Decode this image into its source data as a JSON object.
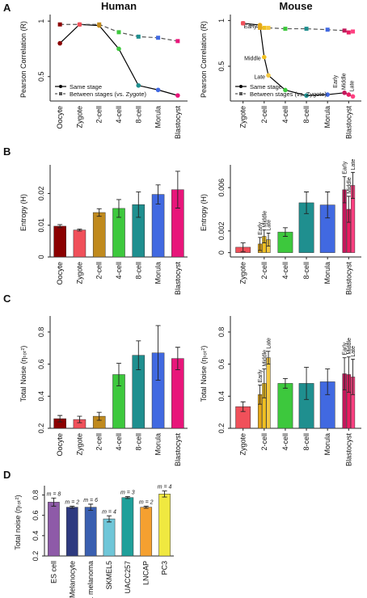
{
  "chart_data": [
    {
      "panel": "A",
      "type": "line",
      "title": "Human",
      "ylabel": "Pearson Correlation (R)",
      "categories": [
        "Oocyte",
        "Zygote",
        "2-cell",
        "4-cell",
        "8-cell",
        "Morula",
        "Blastocyst"
      ],
      "point_colors": [
        "#8b0000",
        "#f0505a",
        "#c08a1e",
        "#3dc83d",
        "#1f8f8f",
        "#4169e1",
        "#e8157a"
      ],
      "series": [
        {
          "name": "Same stage",
          "color": "#000000",
          "linestyle": "solid",
          "marker": "circle",
          "values": [
            0.8,
            0.97,
            0.96,
            0.75,
            0.42,
            0.38,
            0.33
          ]
        },
        {
          "name": "Between stages (vs. Zygote)",
          "color": "#555555",
          "linestyle": "dashed",
          "marker": "square",
          "values": [
            0.97,
            0.97,
            0.97,
            0.9,
            0.86,
            0.85,
            0.82
          ]
        }
      ],
      "ylim": [
        0.28,
        1.03
      ],
      "yticks": [
        0.5,
        1
      ],
      "legend": "lower left"
    },
    {
      "type": "line",
      "title": "Mouse",
      "ylabel": "Pearson Correlation (R)",
      "x": [
        1,
        1.8,
        2,
        2.2,
        3,
        4,
        5,
        5.8,
        6,
        6.2
      ],
      "xlim": [
        0.4,
        6.6
      ],
      "xticks": [
        {
          "value": 1,
          "label": "Zygote"
        },
        {
          "value": 2,
          "label": "2-cell"
        },
        {
          "value": 3,
          "label": "4-cell"
        },
        {
          "value": 4,
          "label": "8-cell"
        },
        {
          "value": 5,
          "label": "Morula"
        },
        {
          "value": 6,
          "label": "Blastocyst"
        }
      ],
      "point_colors": [
        "#f0505a",
        "#e6a817",
        "#f0c020",
        "#f5c842",
        "#3dc83d",
        "#1f8f8f",
        "#4169e1",
        "#c2185b",
        "#e91e63",
        "#ff4081"
      ],
      "point_labels": [
        null,
        "Early",
        "Middle",
        "Late",
        null,
        null,
        null,
        "Early",
        "Middle",
        "Late"
      ],
      "series": [
        {
          "name": "Same stage",
          "color": "#000000",
          "linestyle": "solid",
          "marker": "circle",
          "values": [
            0.97,
            0.95,
            0.6,
            0.4,
            0.24,
            0.18,
            0.19,
            0.21,
            0.19,
            0.17
          ]
        },
        {
          "name": "Between stages (vs. Zygote)",
          "color": "#555555",
          "linestyle": "dashed",
          "marker": "square",
          "values": [
            0.97,
            0.92,
            0.92,
            0.92,
            0.91,
            0.91,
            0.9,
            0.89,
            0.87,
            0.88
          ]
        }
      ],
      "ylim": [
        0.12,
        1.03
      ],
      "yticks": [
        0.5,
        1
      ],
      "legend": "lower left"
    },
    {
      "panel": "B",
      "type": "bar",
      "ylabel": "Entropy (H)",
      "categories": [
        "Oocyte",
        "Zygote",
        "2-cell",
        "4-cell",
        "8-cell",
        "Morula",
        "Blastocyst"
      ],
      "values": [
        0.0097,
        0.0085,
        0.014,
        0.0153,
        0.0165,
        0.0197,
        0.0212
      ],
      "errors": [
        0.0005,
        0.0003,
        0.0012,
        0.0028,
        0.004,
        0.003,
        0.0058
      ],
      "colors": [
        "#8b0000",
        "#f0505a",
        "#c08a1e",
        "#3dc83d",
        "#1f8f8f",
        "#4169e1",
        "#e8157a"
      ],
      "ylim": [
        0,
        0.028
      ],
      "yticks": [
        0,
        0.01,
        0.02
      ]
    },
    {
      "type": "bar",
      "ylabel": "Entropy (H)",
      "x": [
        1,
        1.8,
        2,
        2.2,
        3,
        4,
        5,
        5.8,
        6,
        6.2
      ],
      "xlim": [
        0.4,
        6.6
      ],
      "xticks": [
        {
          "value": 1,
          "label": "Zygote"
        },
        {
          "value": 2,
          "label": "2-cell"
        },
        {
          "value": 3,
          "label": "4-cell"
        },
        {
          "value": 4,
          "label": "8-cell"
        },
        {
          "value": 5,
          "label": "Morula"
        },
        {
          "value": 6,
          "label": "Blastocyst"
        }
      ],
      "values": [
        0.0005,
        0.0008,
        0.0015,
        0.0012,
        0.0019,
        0.0046,
        0.0044,
        0.0058,
        0.004,
        0.0062
      ],
      "errors": [
        0.0004,
        0.0006,
        0.0006,
        0.0006,
        0.0004,
        0.001,
        0.0012,
        0.0012,
        0.0012,
        0.0012
      ],
      "colors": [
        "#f0505a",
        "#e6a817",
        "#f0c020",
        "#f5c842",
        "#3dc83d",
        "#1f8f8f",
        "#4169e1",
        "#c2185b",
        "#e91e63",
        "#ff4081"
      ],
      "bar_labels": [
        null,
        "Early",
        "Middle",
        "Late",
        null,
        null,
        null,
        "Early",
        "Middle",
        "Late"
      ],
      "ylim": [
        -0.0004,
        0.0078
      ],
      "yticks": [
        0,
        0.002,
        0.006
      ]
    },
    {
      "panel": "C",
      "type": "bar",
      "ylabel": "Total Noise (ηₜₒₜ²)",
      "categories": [
        "Oocyte",
        "Zygote",
        "2-cell",
        "4-cell",
        "8-cell",
        "Morula",
        "Blastocyst"
      ],
      "values": [
        0.26,
        0.255,
        0.275,
        0.535,
        0.655,
        0.67,
        0.635
      ],
      "errors": [
        0.02,
        0.02,
        0.025,
        0.07,
        0.09,
        0.17,
        0.07
      ],
      "colors": [
        "#8b0000",
        "#f0505a",
        "#c08a1e",
        "#3dc83d",
        "#1f8f8f",
        "#4169e1",
        "#e8157a"
      ],
      "ylim": [
        0.2,
        0.88
      ],
      "yticks": [
        0.2,
        0.4,
        0.6,
        0.8
      ]
    },
    {
      "type": "bar",
      "ylabel": "Total Noise (ηₜₒₜ²)",
      "x": [
        1,
        1.8,
        2,
        2.2,
        3,
        4,
        5,
        5.8,
        6,
        6.2
      ],
      "xlim": [
        0.4,
        6.6
      ],
      "xticks": [
        {
          "value": 1,
          "label": "Zygote"
        },
        {
          "value": 2,
          "label": "2-cell"
        },
        {
          "value": 3,
          "label": "4-cell"
        },
        {
          "value": 4,
          "label": "8-cell"
        },
        {
          "value": 5,
          "label": "Morula"
        },
        {
          "value": 6,
          "label": "Blastocyst"
        }
      ],
      "values": [
        0.335,
        0.41,
        0.48,
        0.64,
        0.48,
        0.48,
        0.49,
        0.54,
        0.535,
        0.52
      ],
      "errors": [
        0.03,
        0.06,
        0.09,
        0.04,
        0.03,
        0.1,
        0.08,
        0.1,
        0.11,
        0.11
      ],
      "colors": [
        "#f0505a",
        "#e6a817",
        "#f0c020",
        "#f5c842",
        "#3dc83d",
        "#1f8f8f",
        "#4169e1",
        "#c2185b",
        "#e91e63",
        "#ff4081"
      ],
      "bar_labels": [
        null,
        "Early",
        "Middle",
        "Late",
        null,
        null,
        null,
        "Early",
        "Middle",
        "Late"
      ],
      "ylim": [
        0.2,
        0.88
      ],
      "yticks": [
        0.2,
        0.4,
        0.6,
        0.8
      ]
    },
    {
      "panel": "D",
      "type": "bar",
      "ylabel": "Total noise (ηₜₒₜ²)",
      "categories": [
        "ES cell",
        "Melanocyte",
        "Circ. melanoma",
        "SKMEL5",
        "UACC257",
        "LNCAP",
        "PC3"
      ],
      "values": [
        0.73,
        0.68,
        0.68,
        0.565,
        0.775,
        0.68,
        0.81
      ],
      "errors": [
        0.04,
        0.01,
        0.03,
        0.03,
        0.01,
        0.01,
        0.03
      ],
      "colors": [
        "#8e5aa8",
        "#2e3a80",
        "#3a5fb0",
        "#6fc6d8",
        "#1fa09a",
        "#f5a030",
        "#f0e840"
      ],
      "annotations": [
        "m = 8",
        "m = 2",
        "m = 6",
        "m = 4",
        "m = 3",
        "m = 2",
        "m = 4"
      ],
      "ylim": [
        0.2,
        0.86
      ],
      "yticks": [
        0.2,
        0.4,
        0.6,
        0.8
      ]
    }
  ]
}
